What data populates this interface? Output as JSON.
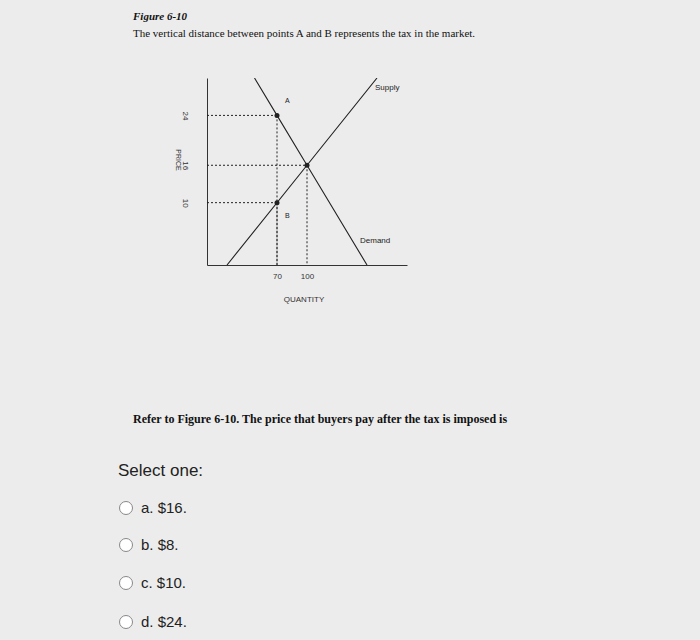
{
  "page": {
    "figure_label": "Figure 6-10",
    "caption": "The vertical distance between points A and B represents the tax in the market.",
    "question": "Refer to Figure 6-10. The price that buyers pay after the tax is imposed is",
    "prompt": "Select one:",
    "options": [
      "a. $16.",
      "b. $8.",
      "c. $10.",
      "d. $24."
    ]
  },
  "chart_data": {
    "type": "line",
    "xlabel": "QUANTITY",
    "ylabel": "PRICE",
    "xlim": [
      0,
      200
    ],
    "ylim": [
      0,
      30
    ],
    "xticks": [
      70,
      100
    ],
    "yticks": [
      10,
      16,
      24
    ],
    "grid": false,
    "series": [
      {
        "name": "Supply",
        "color": "#222222",
        "x": [
          20,
          100,
          170
        ],
        "values": [
          0,
          16,
          30
        ]
      },
      {
        "name": "Demand",
        "color": "#222222",
        "x": [
          47.5,
          70,
          100,
          160
        ],
        "values": [
          30,
          24,
          16,
          0
        ]
      },
      {
        "type": "scatter",
        "color": "#222222",
        "marker": "circle",
        "line_style": "dashed",
        "x": [
          70,
          70,
          100
        ],
        "values": [
          24,
          10,
          16
        ]
      }
    ],
    "annotations": [
      {
        "text": "A",
        "x": 70,
        "y": 24
      },
      {
        "text": "B",
        "x": 70,
        "y": 10
      }
    ]
  }
}
